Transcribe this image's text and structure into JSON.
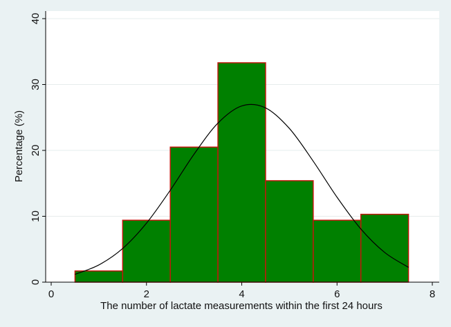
{
  "chart_data": {
    "type": "histogram",
    "xlabel": "The number of lactate measurements within the first 24 hours",
    "ylabel": "Percentage (%)",
    "bins": [
      0.5,
      1.5,
      2.5,
      3.5,
      4.5,
      5.5,
      6.5,
      7.5
    ],
    "values": [
      1.7,
      9.4,
      20.5,
      33.3,
      15.4,
      9.4,
      10.3
    ],
    "color": "#008000",
    "edgecolor": "#c0180c",
    "curve": {
      "x": [
        0.5,
        1.0,
        1.5,
        2.0,
        2.5,
        3.0,
        3.5,
        4.0,
        4.5,
        5.0,
        5.5,
        6.0,
        6.5,
        7.0,
        7.5
      ],
      "values": [
        1.19,
        2.61,
        5.11,
        8.95,
        13.96,
        19.44,
        24.14,
        26.75,
        26.45,
        23.33,
        18.36,
        12.89,
        8.07,
        4.51,
        2.25
      ],
      "color": "#000000"
    },
    "xlim": [
      0,
      8
    ],
    "xticks": [
      0,
      2,
      4,
      6,
      8
    ],
    "ylim": [
      0,
      40
    ],
    "yticks": [
      0,
      10,
      20,
      30,
      40
    ],
    "grid": true
  }
}
